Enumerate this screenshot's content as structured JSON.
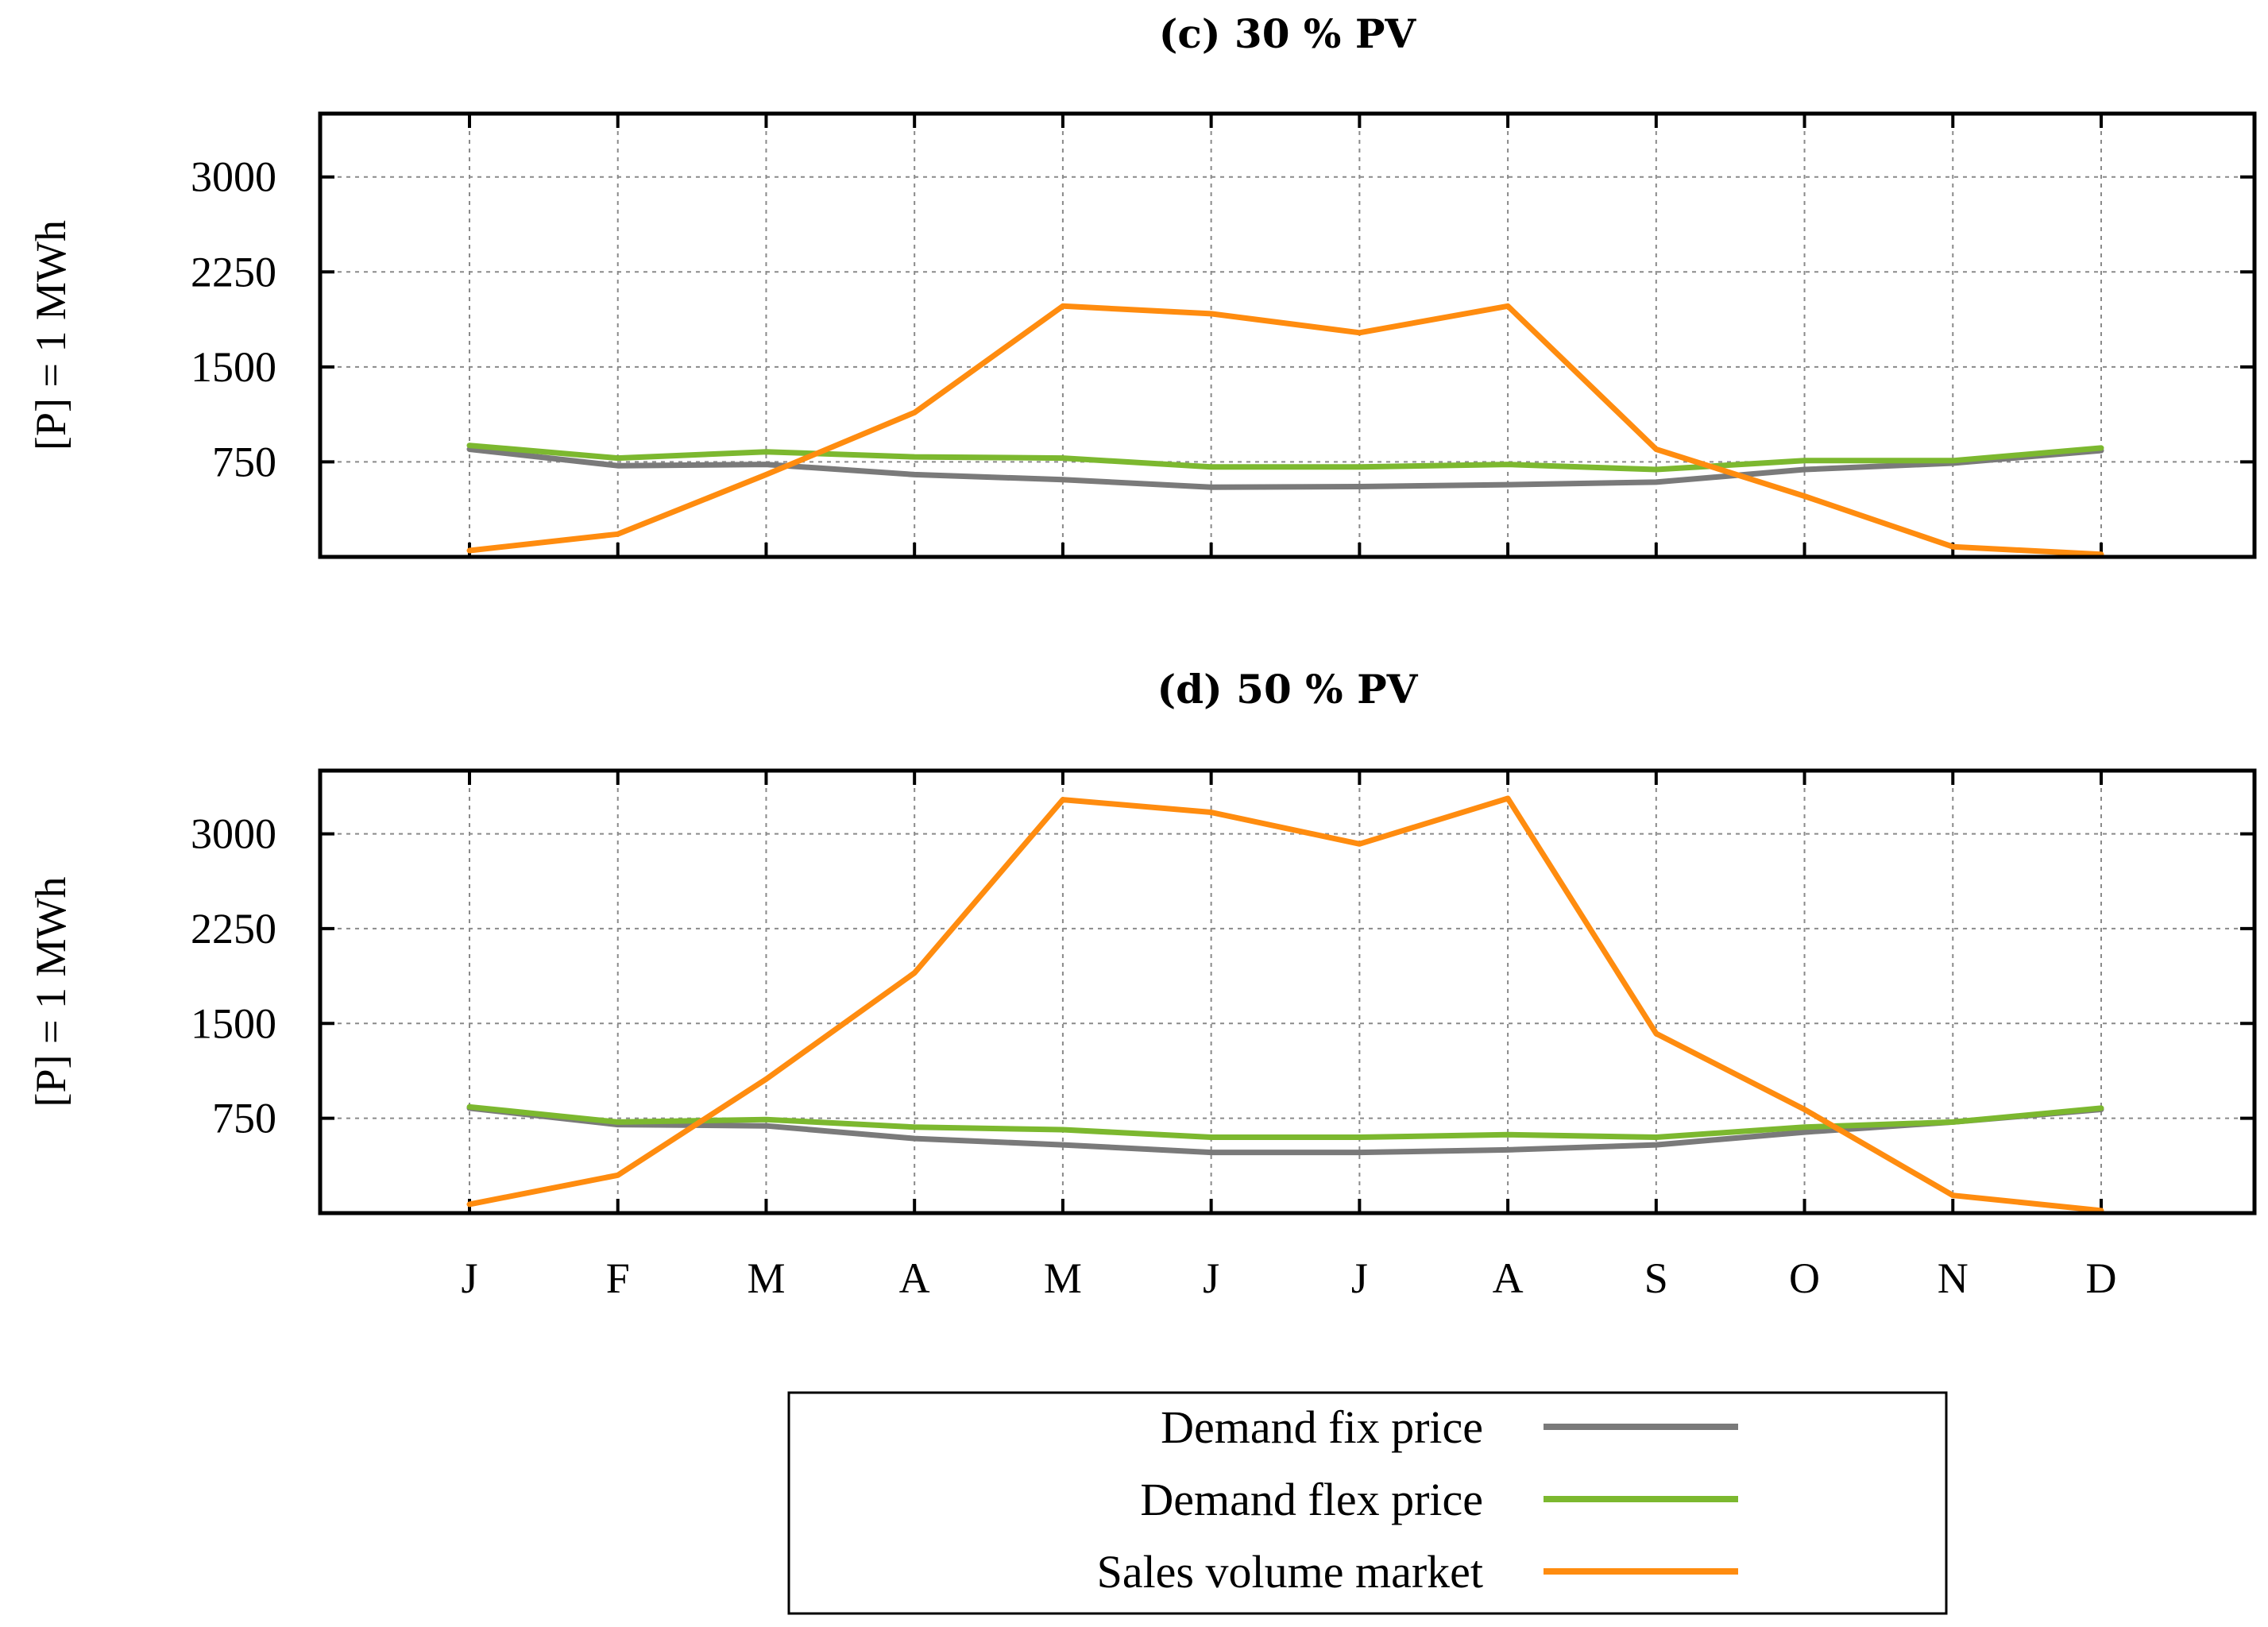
{
  "chart_data": [
    {
      "type": "line",
      "title": "(c) 30 % PV",
      "ylabel": "[P] = 1 MWh",
      "xlabel": "",
      "categories": [
        "J",
        "F",
        "M",
        "A",
        "M",
        "J",
        "J",
        "A",
        "S",
        "O",
        "N",
        "D"
      ],
      "ylim": [
        0,
        3500
      ],
      "yticks": [
        750,
        1500,
        2250,
        3000
      ],
      "yticklabels": [
        "750",
        "1500",
        "2250",
        "3000"
      ],
      "show_xticklabels": false,
      "grid": true,
      "series": [
        {
          "name": "Demand fix price",
          "color": "#7a7a7a",
          "values": [
            850,
            720,
            730,
            650,
            610,
            550,
            555,
            570,
            590,
            690,
            740,
            840
          ]
        },
        {
          "name": "Demand flex price",
          "color": "#7cb82f",
          "values": [
            880,
            780,
            830,
            790,
            780,
            710,
            710,
            730,
            690,
            760,
            760,
            860
          ]
        },
        {
          "name": "Sales volume market",
          "color": "#ff8c0f",
          "values": [
            50,
            180,
            650,
            1140,
            1980,
            1920,
            1770,
            1980,
            850,
            480,
            80,
            20
          ]
        }
      ]
    },
    {
      "type": "line",
      "title": "(d) 50 % PV",
      "ylabel": "[P] = 1 MWh",
      "xlabel": "",
      "categories": [
        "J",
        "F",
        "M",
        "A",
        "M",
        "J",
        "J",
        "A",
        "S",
        "O",
        "N",
        "D"
      ],
      "ylim": [
        0,
        3500
      ],
      "yticks": [
        750,
        1500,
        2250,
        3000
      ],
      "yticklabels": [
        "750",
        "1500",
        "2250",
        "3000"
      ],
      "show_xticklabels": true,
      "grid": true,
      "series": [
        {
          "name": "Demand fix price",
          "color": "#7a7a7a",
          "values": [
            830,
            700,
            690,
            590,
            540,
            480,
            480,
            500,
            540,
            640,
            720,
            820
          ]
        },
        {
          "name": "Demand flex price",
          "color": "#7cb82f",
          "values": [
            840,
            720,
            740,
            680,
            660,
            600,
            600,
            620,
            600,
            680,
            720,
            830
          ]
        },
        {
          "name": "Sales volume market",
          "color": "#ff8c0f",
          "values": [
            70,
            300,
            1060,
            1900,
            3270,
            3170,
            2920,
            3280,
            1420,
            820,
            140,
            20
          ]
        }
      ]
    }
  ],
  "legend": {
    "position": "bottom-center",
    "items": [
      {
        "label": "Demand fix price",
        "color": "#7a7a7a"
      },
      {
        "label": "Demand flex price",
        "color": "#7cb82f"
      },
      {
        "label": "Sales volume market",
        "color": "#ff8c0f"
      }
    ]
  }
}
